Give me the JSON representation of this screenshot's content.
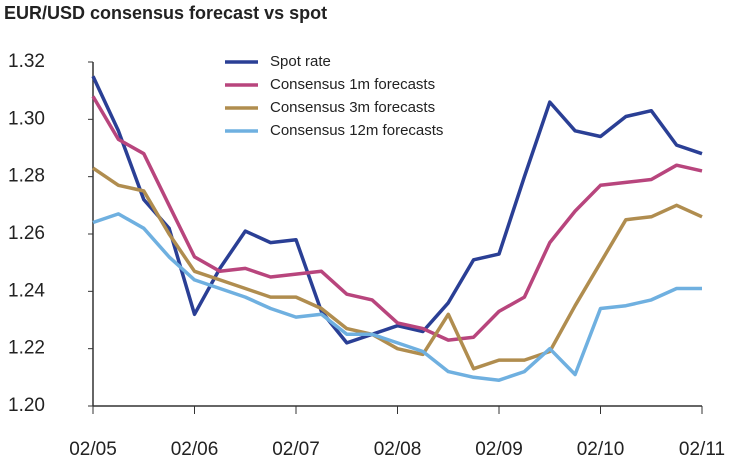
{
  "chart_data": {
    "type": "line",
    "title": "EUR/USD consensus forecast vs spot",
    "categories": [
      "02/05",
      null,
      null,
      null,
      "02/06",
      null,
      null,
      null,
      "02/07",
      null,
      null,
      null,
      "02/08",
      null,
      null,
      null,
      "02/09",
      null,
      null,
      null,
      "02/10",
      null,
      null,
      null,
      "02/11"
    ],
    "series": [
      {
        "name": "Spot rate",
        "color": "#2a3f95",
        "values": [
          1.315,
          1.296,
          1.272,
          1.262,
          1.232,
          1.248,
          1.261,
          1.257,
          1.258,
          1.233,
          1.222,
          1.225,
          1.228,
          1.226,
          1.236,
          1.251,
          1.253,
          1.28,
          1.306,
          1.296,
          1.294,
          1.301,
          1.303,
          1.291,
          1.288
        ]
      },
      {
        "name": "Consensus 1m forecasts",
        "color": "#b8457d",
        "values": [
          1.308,
          1.293,
          1.288,
          1.27,
          1.252,
          1.247,
          1.248,
          1.245,
          1.246,
          1.247,
          1.239,
          1.237,
          1.229,
          1.227,
          1.223,
          1.224,
          1.233,
          1.238,
          1.257,
          1.268,
          1.277,
          1.278,
          1.279,
          1.284,
          1.282
        ]
      },
      {
        "name": "Consensus 3m forecasts",
        "color": "#b08d4f",
        "values": [
          1.283,
          1.277,
          1.275,
          1.26,
          1.247,
          1.244,
          1.241,
          1.238,
          1.238,
          1.234,
          1.227,
          1.225,
          1.22,
          1.218,
          1.232,
          1.213,
          1.216,
          1.216,
          1.219,
          1.235,
          1.25,
          1.265,
          1.266,
          1.27,
          1.266
        ]
      },
      {
        "name": "Consensus 12m forecasts",
        "color": "#6fb0e0",
        "values": [
          1.264,
          1.267,
          1.262,
          1.252,
          1.244,
          1.241,
          1.238,
          1.234,
          1.231,
          1.232,
          1.225,
          1.225,
          1.222,
          1.219,
          1.212,
          1.21,
          1.209,
          1.212,
          1.22,
          1.211,
          1.234,
          1.235,
          1.237,
          1.241,
          1.241
        ]
      }
    ],
    "ylim": [
      1.2,
      1.32
    ],
    "yticks": [
      {
        "value": 1.2,
        "label": "1.20"
      },
      1.22,
      1.24,
      1.26,
      1.28,
      {
        "value": 1.3,
        "label": "1.30"
      },
      1.32
    ],
    "grid": false,
    "legend": "top"
  }
}
